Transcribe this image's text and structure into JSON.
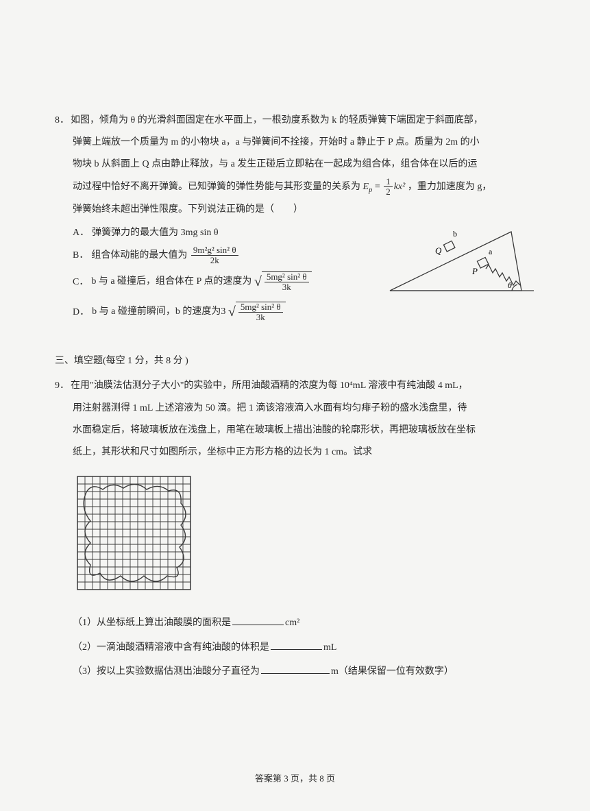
{
  "q8": {
    "number": "8．",
    "text_l1": "如图，倾角为 θ 的光滑斜面固定在水平面上，一根劲度系数为 k 的轻质弹簧下端固定于斜面底部，",
    "text_l2": "弹簧上端放一个质量为 m 的小物块 a，a 与弹簧间不拴接，开始时 a 静止于 P 点。质量为 2m 的小",
    "text_l3": "物块 b 从斜面上 Q 点由静止释放，与 a 发生正碰后立即粘在一起成为组合体，组合体在以后的运",
    "text_l4_a": "动过程中恰好不离开弹簧。已知弹簧的弹性势能与其形变量的关系为",
    "text_l4_b": "，重力加速度为 g，",
    "text_l5": "弹簧始终未超出弹性限度。下列说法正确的是（　　）",
    "ep_eq": "E",
    "ep_sub": "p",
    "ep_rhs_num": "1",
    "ep_rhs_den": "2",
    "ep_rhs_tail": "kx²",
    "optA": {
      "letter": "A．",
      "text": "弹簧弹力的最大值为 3mg sin θ"
    },
    "optB": {
      "letter": "B．",
      "text_a": "组合体动能的最大值为",
      "num": "9m²g² sin² θ",
      "den": "2k"
    },
    "optC": {
      "letter": "C．",
      "text_a": "b 与 a 碰撞后，组合体在 P 点的速度为",
      "num": "5mg² sin² θ",
      "den": "3k"
    },
    "optD": {
      "letter": "D．",
      "text_a": "b 与 a 碰撞前瞬间，b 的速度为",
      "three": "3",
      "num": "5mg² sin² θ",
      "den": "3k"
    },
    "fig": {
      "b": "b",
      "Q": "Q",
      "a": "a",
      "P": "P",
      "theta": "θ",
      "stroke": "#3a3a3a"
    }
  },
  "section3": "三、填空题(每空 1 分，共 8 分 )",
  "q9": {
    "number": "9．",
    "l1": "在用\"油膜法估测分子大小\"的实验中，所用油酸酒精的浓度为每 10⁴mL 溶液中有纯油酸 4 mL，",
    "l2": "用注射器测得 1 mL 上述溶液为 50 滴。把 1 滴该溶液滴入水面有均匀痱子粉的盛水浅盘里，待",
    "l3": "水面稳定后，将玻璃板放在浅盘上，用笔在玻璃板上描出油酸的轮廓形状，再把玻璃板放在坐标",
    "l4": "纸上，其形状和尺寸如图所示，坐标中正方形方格的边长为 1 cm。试求",
    "sub1_a": "（1）从坐标纸上算出油酸膜的面积是",
    "sub1_b": "cm²",
    "sub2_a": "（2）一滴油酸酒精溶液中含有纯油酸的体积是",
    "sub2_b": "mL",
    "sub3_a": "（3）按以上实验数据估测出油酸分子直径为",
    "sub3_b": "m（结果保留一位有效数字）",
    "fig": {
      "stroke": "#3a3a3a",
      "gridN": 15,
      "gridSize": 11
    }
  },
  "footer": "答案第 3 页，共 8 页"
}
